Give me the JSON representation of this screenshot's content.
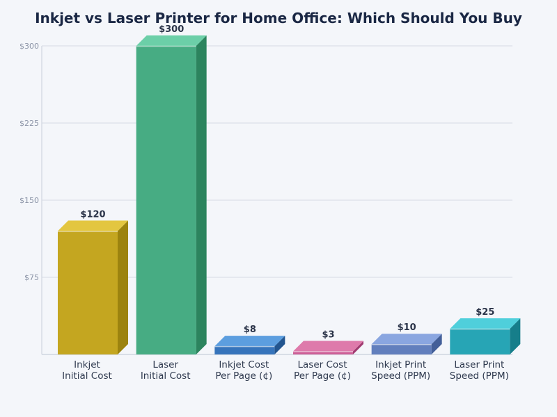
{
  "title": "Inkjet vs Laser Printer for Home Office: Which Should You Buy",
  "yaxis": {
    "ticks": [
      {
        "value": 75,
        "label": "$75"
      },
      {
        "value": 150,
        "label": "$150"
      },
      {
        "value": 225,
        "label": "$225"
      },
      {
        "value": 300,
        "label": "$300"
      }
    ]
  },
  "bars": [
    {
      "category": [
        "Inkjet",
        "Initial Cost"
      ],
      "value": 120,
      "label": "$120",
      "front": "#c4a620",
      "top": "#e3c640",
      "side": "#9c830f"
    },
    {
      "category": [
        "Laser",
        "Initial Cost"
      ],
      "value": 300,
      "label": "$300",
      "front": "#47ac83",
      "top": "#6ccfa8",
      "side": "#2c845e"
    },
    {
      "category": [
        "Inkjet Cost",
        "Per Page (¢)"
      ],
      "value": 8,
      "label": "$8",
      "front": "#3674bb",
      "top": "#5c9edf",
      "side": "#22558f"
    },
    {
      "category": [
        "Laser Cost",
        "Per Page (¢)"
      ],
      "value": 3,
      "label": "$3",
      "front": "#cd5f97",
      "top": "#de7aab",
      "side": "#a03a70"
    },
    {
      "category": [
        "Inkjet Print",
        "Speed (PPM)"
      ],
      "value": 10,
      "label": "$10",
      "front": "#627fbd",
      "top": "#8aa6e0",
      "side": "#435f99"
    },
    {
      "category": [
        "Laser Print",
        "Speed (PPM)"
      ],
      "value": 25,
      "label": "$25",
      "front": "#27a5b5",
      "top": "#4fcfdb",
      "side": "#167e8a"
    }
  ],
  "chart_data": {
    "type": "bar",
    "title": "Inkjet vs Laser Printer for Home Office: Which Should You Buy",
    "categories": [
      "Inkjet Initial Cost",
      "Laser Initial Cost",
      "Inkjet Cost Per Page (¢)",
      "Laser Cost Per Page (¢)",
      "Inkjet Print Speed (PPM)",
      "Laser Print Speed (PPM)"
    ],
    "values": [
      120,
      300,
      8,
      3,
      10,
      25
    ],
    "data_labels": [
      "$120",
      "$300",
      "$8",
      "$3",
      "$10",
      "$25"
    ],
    "xlabel": "",
    "ylabel": "",
    "ylim": [
      0,
      300
    ],
    "yticks": [
      "$75",
      "$150",
      "$225",
      "$300"
    ],
    "grid": "horizontal",
    "legend": "none",
    "style": "3d-bars"
  }
}
